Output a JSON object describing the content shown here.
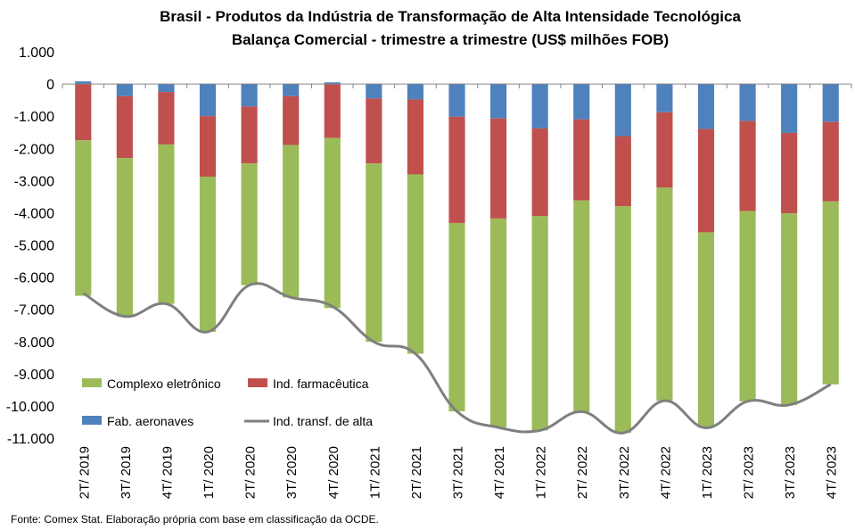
{
  "chart_data": {
    "type": "bar",
    "stacked": true,
    "title": "Brasil - Produtos da Indústria de Transformação de Alta Intensidade Tecnológica",
    "subtitle": "Balança Comercial - trimestre a trimestre (US$ milhões FOB)",
    "ylim": [
      -11000,
      1000
    ],
    "ytick_step": 1000,
    "ytick_labels": [
      "1.000",
      "0",
      "-1.000",
      "-2.000",
      "-3.000",
      "-4.000",
      "-5.000",
      "-6.000",
      "-7.000",
      "-8.000",
      "-9.000",
      "-10.000",
      "-11.000"
    ],
    "grid": false,
    "legend_position": "bottom-left",
    "categories": [
      "2T/ 2019",
      "3T/ 2019",
      "4T/ 2019",
      "1T/ 2020",
      "2T/ 2020",
      "3T/ 2020",
      "4T/ 2020",
      "1T/ 2021",
      "2T/ 2021",
      "3T/ 2021",
      "4T/ 2021",
      "1T/ 2022",
      "2T/ 2022",
      "3T/ 2022",
      "4T/ 2022",
      "1T/ 2023",
      "2T/ 2023",
      "3T/ 2023",
      "4T/ 2023"
    ],
    "series": [
      {
        "name": "Fab. aeronaves",
        "kind": "bar",
        "color": "#4f81bd",
        "values": [
          80,
          -380,
          -250,
          -1000,
          -700,
          -380,
          50,
          -450,
          -480,
          -1020,
          -1070,
          -1380,
          -1100,
          -1620,
          -880,
          -1400,
          -1150,
          -1520,
          -1180
        ]
      },
      {
        "name": "Ind. farmacêutica",
        "kind": "bar",
        "color": "#c0504d",
        "values": [
          -1750,
          -1920,
          -1630,
          -1880,
          -1770,
          -1520,
          -1680,
          -2020,
          -2330,
          -3300,
          -3110,
          -2720,
          -2520,
          -2180,
          -2340,
          -3210,
          -2800,
          -2500,
          -2470
        ]
      },
      {
        "name": "Complexo eletrônico",
        "kind": "bar",
        "color": "#9bbb59",
        "values": [
          -4830,
          -4920,
          -4950,
          -4820,
          -3780,
          -4730,
          -5280,
          -5540,
          -5570,
          -5850,
          -6490,
          -6660,
          -6560,
          -7040,
          -6620,
          -6070,
          -5910,
          -5950,
          -5680
        ]
      },
      {
        "name": "Ind. transf. de alta",
        "kind": "line",
        "color": "#7f7f7f",
        "values": [
          -6500,
          -7220,
          -6830,
          -7700,
          -6250,
          -6630,
          -6910,
          -8010,
          -8380,
          -10170,
          -10670,
          -10760,
          -10180,
          -10840,
          -9840,
          -10680,
          -9860,
          -9970,
          -9330
        ]
      }
    ],
    "legend_order": [
      "Complexo eletrônico",
      "Ind. farmacêutica",
      "Fab. aeronaves",
      "Ind. transf. de alta"
    ]
  },
  "source_note": "Fonte: Comex Stat. Elaboração própria com base em classificação da OCDE."
}
